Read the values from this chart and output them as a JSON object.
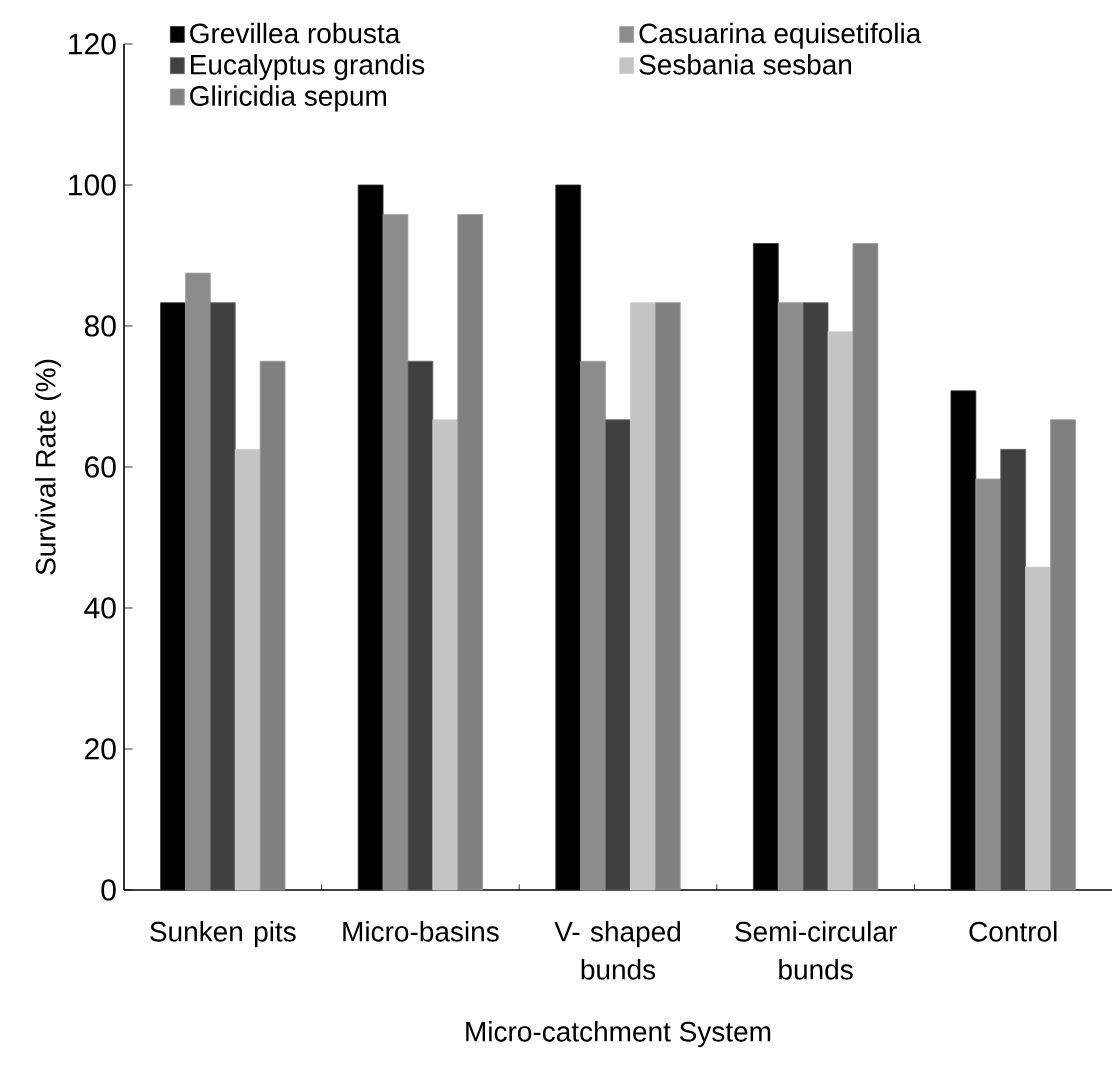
{
  "chart_data": {
    "type": "bar",
    "xlabel": "Micro-catchment System",
    "ylabel": "Survival Rate (%)",
    "categories": [
      "Sunken pits",
      "Micro-basins",
      "V- shaped bunds",
      "Semi-circular bunds",
      "Control"
    ],
    "series": [
      {
        "name": "Grevillea robusta",
        "color": "#000000",
        "values": [
          83.3,
          100,
          100,
          91.7,
          70.8
        ]
      },
      {
        "name": "Casuarina equisetifolia",
        "color": "#8c8c8c",
        "values": [
          87.5,
          95.8,
          75,
          83.3,
          58.3
        ]
      },
      {
        "name": "Eucalyptus grandis",
        "color": "#404040",
        "values": [
          83.3,
          75,
          66.7,
          83.3,
          62.5
        ]
      },
      {
        "name": "Sesbania sesban",
        "color": "#c4c4c4",
        "values": [
          62.5,
          66.7,
          83.3,
          79.2,
          45.8
        ]
      },
      {
        "name": "Gliricidia sepum",
        "color": "#808080",
        "values": [
          75,
          95.8,
          83.3,
          91.7,
          66.7
        ]
      }
    ],
    "ylim": [
      0,
      120
    ],
    "yticks": [
      0,
      20,
      40,
      60,
      80,
      100,
      120
    ],
    "legend": "top"
  }
}
